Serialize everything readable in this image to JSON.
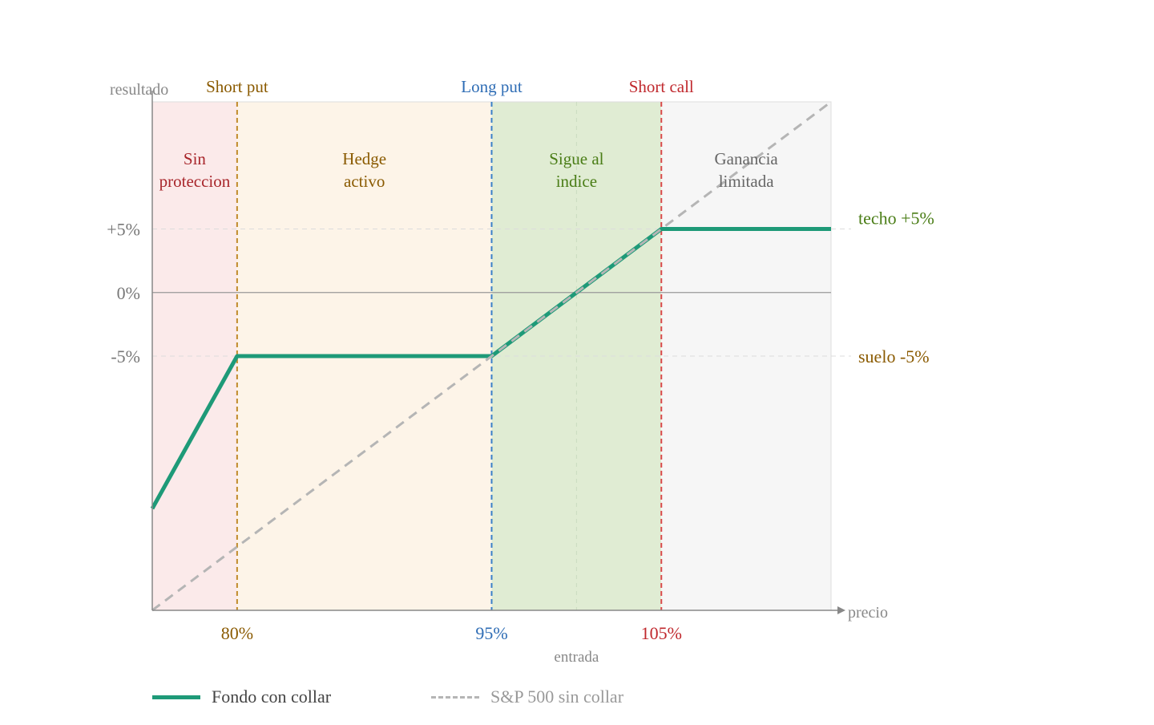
{
  "chart_data": {
    "type": "line",
    "ylabel": "resultado",
    "xlabel": "precio",
    "entry_label": "entrada",
    "entry_x": 100,
    "xlim": [
      75,
      115
    ],
    "ylim": [
      -25,
      15
    ],
    "x_ticks": [
      {
        "value": 80,
        "label": "80%",
        "color": "#8a5a00"
      },
      {
        "value": 95,
        "label": "95%",
        "color": "#2f6db5"
      },
      {
        "value": 105,
        "label": "105%",
        "color": "#c0282d"
      }
    ],
    "y_ticks": [
      {
        "value": 5,
        "label": "+5%"
      },
      {
        "value": 0,
        "label": "0%"
      },
      {
        "value": -5,
        "label": "-5%"
      }
    ],
    "strikes": [
      {
        "x": 80,
        "label": "Short put",
        "color": "#8a5a00",
        "line_color": "#c08a2a"
      },
      {
        "x": 95,
        "label": "Long put",
        "color": "#2f6db5",
        "line_color": "#3a7fc8"
      },
      {
        "x": 105,
        "label": "Short call",
        "color": "#c0282d",
        "line_color": "#d94a4a"
      }
    ],
    "zones": [
      {
        "from": 75,
        "to": 80,
        "lines": [
          "Sin",
          "proteccion"
        ],
        "fill": "#fbeaea",
        "text_color": "#a8262b"
      },
      {
        "from": 80,
        "to": 95,
        "lines": [
          "Hedge",
          "activo"
        ],
        "fill": "#fdf4e8",
        "text_color": "#8a5a00"
      },
      {
        "from": 95,
        "to": 105,
        "lines": [
          "Sigue al",
          "indice"
        ],
        "fill": "#e0ecd3",
        "text_color": "#4a7d16"
      },
      {
        "from": 105,
        "to": 115,
        "lines": [
          "Ganancia",
          "limitada"
        ],
        "fill": "#f6f6f6",
        "text_color": "#666666"
      }
    ],
    "annotations": [
      {
        "y": 5,
        "label": "techo +5%",
        "color": "#4a7d16"
      },
      {
        "y": -5,
        "label": "suelo -5%",
        "color": "#8a5a00"
      }
    ],
    "series": [
      {
        "name": "Fondo con collar",
        "color": "#1e9a78",
        "style": "solid",
        "x": [
          75,
          80,
          95,
          105,
          115
        ],
        "y": [
          -17,
          -5,
          -5,
          5,
          5
        ]
      },
      {
        "name": "S&P 500 sin collar",
        "color": "#b5b5b5",
        "style": "dashed",
        "x": [
          75,
          115
        ],
        "y": [
          -25,
          15
        ]
      }
    ]
  }
}
